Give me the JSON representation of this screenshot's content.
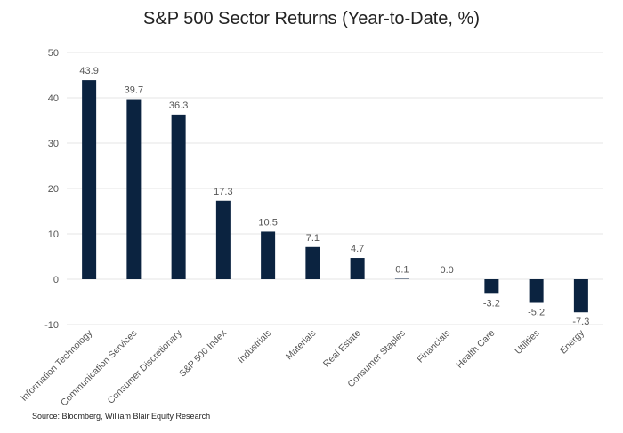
{
  "chart_data": {
    "type": "bar",
    "title": "S&P 500 Sector Returns (Year-to-Date, %)",
    "xlabel": "",
    "ylabel": "",
    "ylim": [
      -10,
      50
    ],
    "yticks": [
      -10,
      0,
      10,
      20,
      30,
      40,
      50
    ],
    "grid": true,
    "legend": "none",
    "categories": [
      "Information Technology",
      "Communication Services",
      "Consumer Discretionary",
      "S&P 500  Index",
      "Industrials",
      "Materials",
      "Real Estate",
      "Consumer Staples",
      "Financials",
      "Health Care",
      "Utilities",
      "Energy"
    ],
    "values": [
      43.9,
      39.7,
      36.3,
      17.3,
      10.5,
      7.1,
      4.7,
      0.1,
      0.0,
      -3.2,
      -5.2,
      -7.3
    ],
    "data_labels": [
      "43.9",
      "39.7",
      "36.3",
      "17.3",
      "10.5",
      "7.1",
      "4.7",
      "0.1",
      "0.0",
      "-3.2",
      "-5.2",
      "-7.3"
    ],
    "bar_color": "#0b2340",
    "gridline_color": "#e6e6e6",
    "text_color": "#555555"
  },
  "source": "Source: Bloomberg, William Blair Equity Research"
}
